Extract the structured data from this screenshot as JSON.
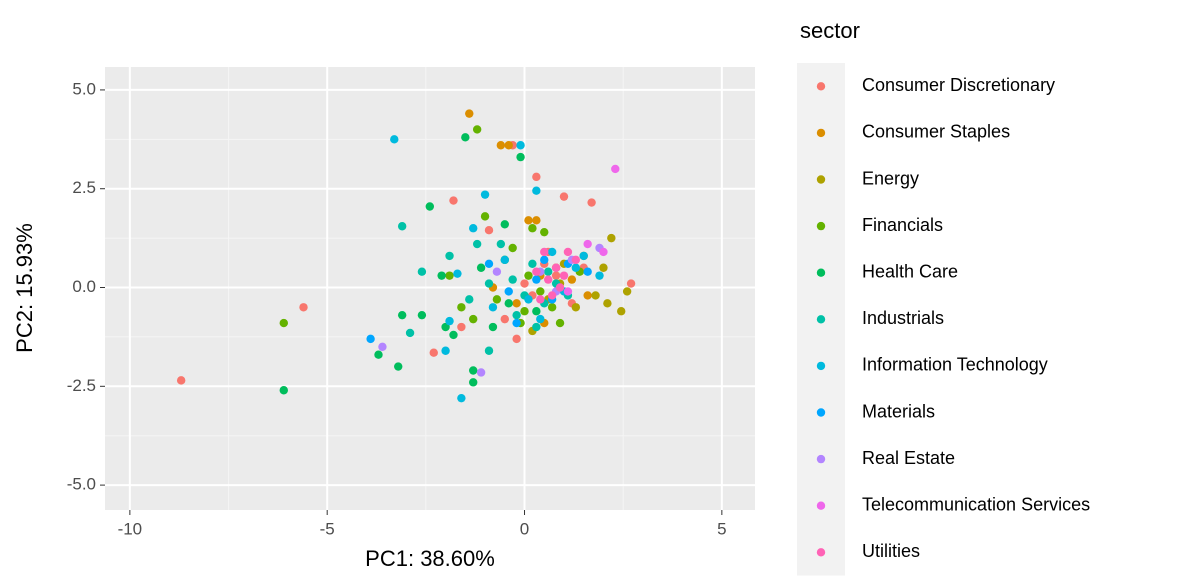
{
  "chart_data": {
    "type": "scatter",
    "xlabel": "PC1: 38.60%",
    "ylabel": "PC2: 15.93%",
    "legend_title": "sector",
    "xlim": [
      -10.63,
      5.84
    ],
    "ylim": [
      -5.63,
      5.58
    ],
    "xticks": [
      -10,
      -5,
      0,
      5
    ],
    "yticks": [
      {
        "value": 5,
        "label": "5.0"
      },
      {
        "value": 2.5,
        "label": "2.5"
      },
      {
        "value": 0,
        "label": "0.0"
      },
      {
        "value": -2.5,
        "label": "-2.5"
      },
      {
        "value": -5,
        "label": "-5.0"
      }
    ],
    "grid": true,
    "legend": "right",
    "series": [
      {
        "name": "Consumer Discretionary",
        "color": "#F8766D",
        "x": [
          -8.7,
          -5.6,
          -2.3,
          -1.8,
          -0.9,
          -0.3,
          0.3,
          1.0,
          1.7,
          2.7,
          0.5,
          0.2,
          0.8,
          -0.5,
          1.2,
          0.6,
          -1.6,
          0.0,
          1.5,
          -0.2
        ],
        "values": [
          -2.35,
          -0.5,
          -1.65,
          2.2,
          1.45,
          3.6,
          2.8,
          2.3,
          2.15,
          0.1,
          0.6,
          -0.2,
          0.3,
          -0.8,
          -0.4,
          0.9,
          -1.0,
          0.1,
          0.5,
          -1.3
        ]
      },
      {
        "name": "Consumer Staples",
        "color": "#DB8E00",
        "x": [
          -1.4,
          -0.6,
          -0.4,
          0.3,
          0.1,
          0.8,
          -0.2,
          0.5,
          1.2,
          -0.8,
          0.4,
          1.6
        ],
        "values": [
          4.4,
          3.6,
          3.6,
          1.7,
          1.7,
          0.5,
          -0.4,
          -0.9,
          0.2,
          0.0,
          0.3,
          -0.2
        ]
      },
      {
        "name": "Energy",
        "color": "#AEA200",
        "x": [
          2.2,
          2.6,
          2.45,
          2.0,
          1.8,
          1.5,
          0.9,
          1.3,
          0.6,
          2.1,
          1.0,
          0.2
        ],
        "values": [
          1.25,
          -0.1,
          -0.6,
          0.5,
          -0.2,
          0.8,
          0.1,
          -0.5,
          -0.3,
          -0.4,
          0.6,
          -1.1
        ]
      },
      {
        "name": "Financials",
        "color": "#64B200",
        "x": [
          -6.1,
          -1.2,
          -1.9,
          -1.0,
          -0.3,
          0.2,
          0.5,
          -0.7,
          0.0,
          -1.3,
          0.4,
          0.9,
          -0.5,
          1.4,
          0.7,
          -1.6,
          0.1,
          -0.1
        ],
        "values": [
          -0.9,
          4.0,
          0.3,
          1.8,
          1.0,
          1.5,
          1.4,
          -0.3,
          -0.6,
          -0.8,
          -0.1,
          -0.9,
          0.7,
          0.4,
          -0.5,
          -0.5,
          0.3,
          -0.9
        ]
      },
      {
        "name": "Health Care",
        "color": "#00BD5C",
        "x": [
          -6.1,
          -3.2,
          -3.7,
          -3.1,
          -2.4,
          -2.1,
          -1.5,
          -0.1,
          -1.3,
          -1.3,
          -0.8,
          -0.5,
          -2.0,
          -1.1,
          0.3,
          -0.4,
          -2.6,
          -1.8
        ],
        "values": [
          -2.6,
          -2.0,
          -1.7,
          -0.7,
          2.05,
          0.3,
          3.8,
          3.3,
          -2.4,
          -2.1,
          -1.0,
          1.6,
          -1.0,
          0.5,
          -0.6,
          -0.4,
          -0.7,
          -1.2
        ]
      },
      {
        "name": "Industrials",
        "color": "#00C1A7",
        "x": [
          -3.1,
          -2.9,
          -2.6,
          -1.9,
          -1.4,
          -0.9,
          -0.6,
          -0.3,
          0.0,
          0.2,
          0.5,
          0.8,
          -0.9,
          -1.2,
          0.3,
          1.1,
          -0.2,
          0.6
        ],
        "values": [
          1.55,
          -1.15,
          0.4,
          0.8,
          -0.3,
          0.1,
          1.1,
          0.2,
          -0.2,
          0.6,
          -0.4,
          0.1,
          -1.6,
          1.1,
          -1.0,
          -0.2,
          -0.7,
          0.4
        ]
      },
      {
        "name": "Information Technology",
        "color": "#00BADE",
        "x": [
          -3.3,
          -0.1,
          -1.0,
          0.3,
          -1.3,
          -1.7,
          -1.9,
          -1.6,
          -2.0,
          -0.5,
          0.1,
          0.7,
          1.3,
          1.9,
          0.4,
          -0.8,
          1.0,
          1.5
        ],
        "values": [
          3.75,
          3.6,
          2.35,
          2.45,
          1.5,
          0.35,
          -0.85,
          -2.8,
          -1.6,
          0.7,
          -0.3,
          0.9,
          0.5,
          0.3,
          -0.8,
          -0.5,
          -0.1,
          0.8
        ]
      },
      {
        "name": "Materials",
        "color": "#00A6FF",
        "x": [
          -3.9,
          -0.9,
          -0.4,
          0.3,
          0.7,
          1.1,
          1.6,
          -0.2,
          0.5
        ],
        "values": [
          -1.3,
          0.6,
          -0.1,
          0.2,
          -0.3,
          0.6,
          0.4,
          -0.9,
          0.7
        ]
      },
      {
        "name": "Real Estate",
        "color": "#B385FF",
        "x": [
          -3.6,
          -1.1,
          -0.7,
          1.9,
          1.2,
          0.8,
          0.4
        ],
        "values": [
          -1.5,
          -2.15,
          0.4,
          1.0,
          0.7,
          -0.1,
          0.4
        ]
      },
      {
        "name": "Telecommunication Services",
        "color": "#EF67EB",
        "x": [
          2.3,
          2.0,
          1.6,
          1.1
        ],
        "values": [
          3.0,
          0.9,
          1.1,
          -0.1
        ]
      },
      {
        "name": "Utilities",
        "color": "#FF63B6",
        "x": [
          0.5,
          0.8,
          1.1,
          0.6,
          0.9,
          0.3,
          1.0,
          0.7,
          1.3,
          0.4
        ],
        "values": [
          0.9,
          0.5,
          0.9,
          0.2,
          0.0,
          0.4,
          0.3,
          -0.2,
          0.7,
          -0.3
        ]
      }
    ]
  }
}
